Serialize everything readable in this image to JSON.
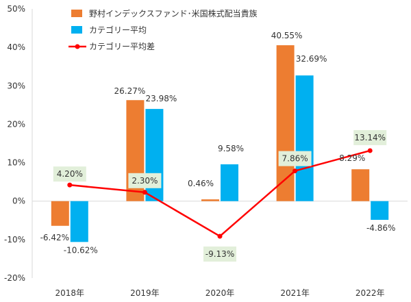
{
  "chart_data": {
    "type": "bar",
    "title": "",
    "xlabel": "",
    "ylabel": "",
    "categories": [
      "2018年",
      "2019年",
      "2020年",
      "2021年",
      "2022年"
    ],
    "ylim": [
      -20,
      50
    ],
    "yticks": [
      -20,
      -10,
      0,
      10,
      20,
      30,
      40,
      50
    ],
    "ytick_labels": [
      "-20%",
      "-10%",
      "0%",
      "10%",
      "20%",
      "30%",
      "40%",
      "50%"
    ],
    "grid": false,
    "legend_position": "top-left",
    "series": [
      {
        "name": "野村インデックスファンド･米国株式配当貴族",
        "kind": "bar",
        "color": "#ED7D31",
        "values": [
          -6.42,
          26.27,
          0.46,
          40.55,
          8.29
        ],
        "labels": [
          "-6.42%",
          "26.27%",
          "0.46%",
          "40.55%",
          "8.29%"
        ]
      },
      {
        "name": "カテゴリー平均",
        "kind": "bar",
        "color": "#00B0F0",
        "values": [
          -10.62,
          23.98,
          9.58,
          32.69,
          -4.86
        ],
        "labels": [
          "-10.62%",
          "23.98%",
          "9.58%",
          "32.69%",
          "-4.86%"
        ]
      },
      {
        "name": "カテゴリー平均差",
        "kind": "line",
        "color": "#FF0000",
        "values": [
          4.2,
          2.3,
          -9.13,
          7.86,
          13.14
        ],
        "labels": [
          "4.20%",
          "2.30%",
          "-9.13%",
          "7.86%",
          "13.14%"
        ],
        "label_box_color": "#E2EFDA"
      }
    ]
  }
}
